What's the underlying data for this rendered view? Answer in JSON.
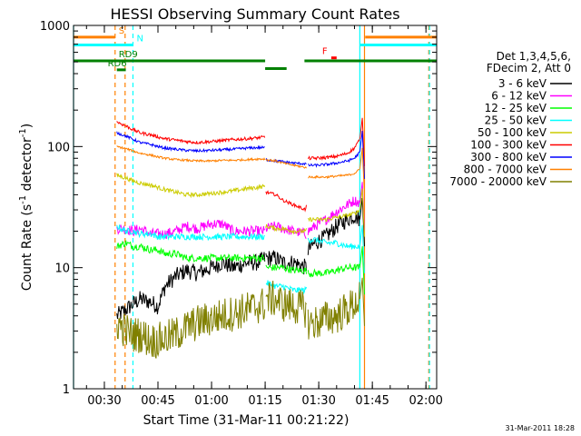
{
  "chart_data": {
    "type": "line",
    "title": "HESSI Observing Summary Count Rates",
    "xlabel": "Start Time (31-Mar-11 00:21:22)",
    "ylabel_main": "Count Rate (s",
    "ylabel_sup1": "-1",
    "ylabel_mid": " detector",
    "ylabel_sup2": "-1",
    "ylabel_end": ")",
    "y_scale": "log",
    "ylim": [
      1,
      1000
    ],
    "xlim_minutes": [
      21.37,
      123
    ],
    "x_ticks": [
      {
        "label": "00:30",
        "minute": 30
      },
      {
        "label": "00:45",
        "minute": 45
      },
      {
        "label": "01:00",
        "minute": 60
      },
      {
        "label": "01:15",
        "minute": 75
      },
      {
        "label": "01:30",
        "minute": 90
      },
      {
        "label": "01:45",
        "minute": 105
      },
      {
        "label": "02:00",
        "minute": 120
      }
    ],
    "y_ticks": [
      {
        "label": "1",
        "value": 1
      },
      {
        "label": "10",
        "value": 10
      },
      {
        "label": "100",
        "value": 100
      },
      {
        "label": "1000",
        "value": 1000
      }
    ],
    "legend": {
      "placement": "right",
      "header1": "Det 1,3,4,5,6,",
      "header2": "FDecim 2, Att 0",
      "entries": [
        "3 - 6 keV",
        "6 - 12 keV",
        "12 - 25 keV",
        "25 - 50 keV",
        "50 - 100 keV",
        "100 - 300 keV",
        "300 - 800 keV",
        "800 - 7000 keV",
        "7000 - 20000 keV"
      ]
    },
    "colors": [
      "#000000",
      "#ff00ff",
      "#00ff00",
      "#00ffff",
      "#cccc00",
      "#ff0000",
      "#0000ff",
      "#ff8000",
      "#808000"
    ],
    "segments": [
      [
        33.5,
        75
      ],
      [
        75.2,
        86.7
      ],
      [
        87,
        101.5
      ]
    ],
    "series": [
      {
        "name": "3 - 6 keV",
        "x": [
          33.5,
          36,
          38,
          40,
          43,
          45,
          47,
          50,
          53,
          56,
          60,
          63,
          66,
          70,
          73,
          75,
          75.2,
          78,
          80,
          83,
          86.5,
          87,
          89,
          92,
          95,
          98,
          100,
          101.5
        ],
        "y": [
          4,
          4.5,
          5,
          5.5,
          5.2,
          4.8,
          7,
          8.5,
          9.5,
          9,
          10,
          11,
          10,
          11,
          11,
          12,
          12,
          12,
          11,
          11,
          10,
          14,
          16,
          18,
          22,
          25,
          27,
          25
        ]
      },
      {
        "name": "6 - 12 keV",
        "x": [
          33.5,
          36,
          38,
          40,
          43,
          45,
          47,
          50,
          53,
          56,
          60,
          63,
          66,
          70,
          73,
          75,
          75.2,
          78,
          80,
          83,
          86.5,
          87,
          89,
          92,
          95,
          98,
          100,
          101.5
        ],
        "y": [
          21,
          21,
          20,
          21,
          19,
          19,
          19,
          20,
          22,
          21,
          23,
          23,
          20,
          20,
          20,
          20,
          21,
          22,
          21,
          20,
          19,
          20,
          22,
          25,
          29,
          33,
          36,
          34
        ]
      },
      {
        "name": "12 - 25 keV",
        "x": [
          33.5,
          36,
          38,
          40,
          43,
          45,
          47,
          50,
          53,
          56,
          60,
          63,
          66,
          70,
          73,
          75,
          75.2,
          78,
          80,
          83,
          86.5,
          87,
          89,
          92,
          95,
          98,
          100,
          101.5
        ],
        "y": [
          15,
          16,
          15,
          15,
          14,
          14,
          13,
          13,
          12,
          12,
          12,
          12,
          12,
          12,
          12,
          12,
          10,
          10,
          10,
          9.5,
          9.5,
          9,
          9,
          9,
          9.5,
          10,
          10,
          10
        ]
      },
      {
        "name": "25 - 50 keV",
        "x": [
          33.5,
          36,
          38,
          40,
          43,
          45,
          47,
          50,
          53,
          56,
          60,
          63,
          66,
          70,
          73,
          75,
          75.2,
          78,
          80,
          83,
          86.5,
          87,
          89,
          92,
          95,
          98,
          100,
          101.5
        ],
        "y": [
          22,
          20,
          20,
          19,
          19,
          18,
          18,
          18,
          18,
          18,
          18,
          18,
          18,
          18,
          18,
          18,
          7.5,
          7,
          7,
          6.5,
          6.5,
          17,
          17,
          16,
          16,
          15,
          15,
          15
        ]
      },
      {
        "name": "50 - 100 keV",
        "x": [
          33.5,
          36,
          38,
          40,
          43,
          45,
          47,
          50,
          53,
          56,
          60,
          63,
          66,
          70,
          73,
          75,
          75.2,
          78,
          80,
          83,
          86.5,
          87,
          89,
          92,
          95,
          98,
          100,
          101.5
        ],
        "y": [
          58,
          55,
          52,
          50,
          48,
          46,
          44,
          42,
          40,
          40,
          41,
          42,
          43,
          45,
          46,
          47,
          22,
          21,
          21,
          20,
          20,
          25,
          25,
          25,
          26,
          27,
          28,
          30
        ]
      },
      {
        "name": "100 - 300 keV",
        "x": [
          33.5,
          36,
          38,
          40,
          43,
          45,
          47,
          50,
          53,
          56,
          60,
          63,
          66,
          70,
          73,
          75,
          75.2,
          78,
          80,
          83,
          86.5,
          87,
          89,
          92,
          95,
          98,
          100,
          101.5
        ],
        "y": [
          160,
          148,
          138,
          130,
          125,
          120,
          116,
          113,
          110,
          108,
          110,
          112,
          114,
          116,
          118,
          120,
          42,
          40,
          36,
          33,
          30,
          80,
          80,
          81,
          83,
          88,
          97,
          115
        ]
      },
      {
        "name": "300 - 800 keV",
        "x": [
          33.5,
          36,
          38,
          40,
          43,
          45,
          47,
          50,
          53,
          56,
          60,
          63,
          66,
          70,
          73,
          75,
          75.2,
          78,
          80,
          83,
          86.5,
          87,
          89,
          92,
          95,
          98,
          100,
          101.5
        ],
        "y": [
          130,
          122,
          115,
          108,
          104,
          100,
          97,
          95,
          93,
          92,
          93,
          94,
          95,
          97,
          98,
          98,
          78,
          76,
          75,
          73,
          72,
          70,
          70,
          71,
          73,
          76,
          80,
          90
        ]
      },
      {
        "name": "800 - 7000 keV",
        "x": [
          33.5,
          36,
          38,
          40,
          43,
          45,
          47,
          50,
          53,
          56,
          60,
          63,
          66,
          70,
          73,
          75,
          75.2,
          78,
          80,
          83,
          86.5,
          87,
          89,
          92,
          95,
          98,
          100,
          101.5
        ],
        "y": [
          100,
          96,
          92,
          88,
          85,
          82,
          80,
          78,
          77,
          76,
          76,
          77,
          77,
          78,
          79,
          79,
          78,
          76,
          73,
          70,
          67,
          56,
          56,
          56,
          57,
          58,
          60,
          65
        ]
      },
      {
        "name": "7000 - 20000 keV",
        "x": [
          33.5,
          36,
          38,
          40,
          43,
          45,
          47,
          50,
          53,
          56,
          60,
          63,
          66,
          70,
          73,
          75,
          75.2,
          78,
          80,
          83,
          86.5,
          87,
          89,
          92,
          95,
          98,
          100,
          101.5
        ],
        "y": [
          3.5,
          3,
          2.8,
          2.8,
          2.5,
          2.5,
          2.6,
          2.8,
          3.2,
          3.5,
          3.8,
          4,
          4.2,
          4.5,
          4.8,
          5,
          5.5,
          5.5,
          5,
          4.8,
          4.5,
          3.5,
          3.5,
          3.8,
          4,
          4.5,
          5,
          5.5
        ]
      }
    ],
    "state_bars": [
      {
        "label": "S",
        "color": "#ff8000",
        "value": 800,
        "ranges": [
          [
            21.37,
            33
          ],
          [
            103,
            123
          ]
        ]
      },
      {
        "label": "N",
        "color": "#00ffff",
        "value": 690,
        "ranges": [
          [
            21.37,
            38
          ],
          [
            101.5,
            123
          ]
        ]
      },
      {
        "label": "RD9",
        "color": "#008000",
        "value": 510,
        "ranges": [
          [
            21.37,
            75
          ],
          [
            86,
            123
          ]
        ]
      },
      {
        "label": "RD6",
        "color": "#008000",
        "value": 430,
        "ranges": [
          [
            33.5,
            36
          ]
        ]
      },
      {
        "label": "F",
        "color": "#ff0000",
        "value": 540,
        "ranges": [
          [
            93.5,
            95
          ]
        ]
      }
    ],
    "extra_bars": [
      {
        "color": "#008000",
        "value": 440,
        "ranges": [
          [
            75,
            81
          ]
        ]
      }
    ],
    "vlines": [
      {
        "minute": 21.37,
        "color": "#00ffff",
        "dashed": false
      },
      {
        "minute": 33.0,
        "color": "#ff8000",
        "dashed": true
      },
      {
        "minute": 35.8,
        "color": "#ff8000",
        "dashed": true
      },
      {
        "minute": 38.0,
        "color": "#00ffff",
        "dashed": true
      },
      {
        "minute": 101.5,
        "color": "#00ffff",
        "dashed": false
      },
      {
        "minute": 102.8,
        "color": "#ff8000",
        "dashed": false
      },
      {
        "minute": 120.8,
        "color": "#ff8000",
        "dashed": true
      },
      {
        "minute": 121.0,
        "color": "#00ffff",
        "dashed": true
      }
    ]
  },
  "footer_stamp": "31-Mar-2011 18:28"
}
